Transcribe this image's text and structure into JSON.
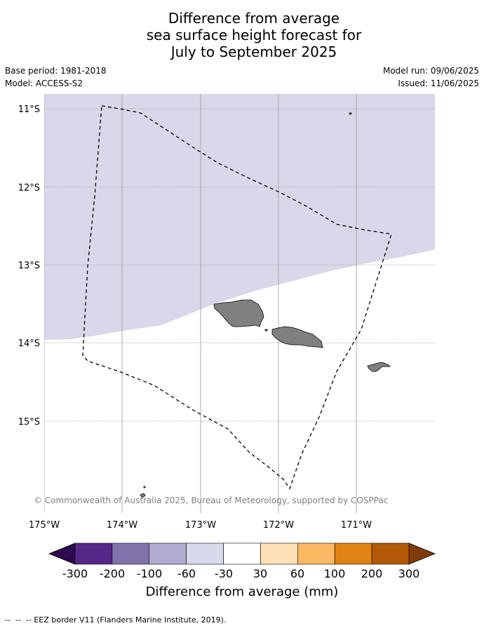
{
  "title": {
    "line1": "Difference from average",
    "line2": "sea surface height forecast for",
    "line3": "July to September 2025"
  },
  "info": {
    "base_period": "Base period: 1981-2018",
    "model": "Model: ACCESS-S2",
    "model_run": "Model run: 09/06/2025",
    "issued": "Issued: 11/06/2025"
  },
  "map": {
    "lat_labels": [
      "11°S",
      "12°S",
      "13°S",
      "14°S",
      "15°S"
    ],
    "lon_labels": [
      "175°W",
      "174°W",
      "173°W",
      "172°W",
      "171°W"
    ],
    "copyright": "© Commonwealth of Australia 2025, Bureau of Meteorology, supported by COSPPac",
    "ocean_colors": {
      "band_-60_-30": "#d8d8ea",
      "band_-30_30": "#ffffff"
    },
    "land_color": "#808080",
    "eez_style": "dashed black line"
  },
  "colorbar": {
    "ticks": [
      "-300",
      "-200",
      "-100",
      "-60",
      "-30",
      "30",
      "60",
      "100",
      "200",
      "300"
    ],
    "label": "Difference from average (mm)",
    "low_extend_color": "#2d0a4e",
    "high_extend_color": "#7f3b08",
    "colors": [
      "#542788",
      "#8073ac",
      "#b2abd2",
      "#d8daeb",
      "#ffffff",
      "#fee0b6",
      "#fdb863",
      "#e08214",
      "#b35806"
    ]
  },
  "footer": {
    "legend": "--  --  -- EEZ border V11 (Flanders Marine Institute, 2019)."
  }
}
